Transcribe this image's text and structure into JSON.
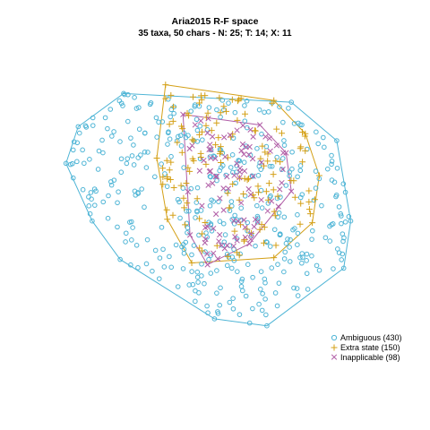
{
  "chart_data": {
    "type": "scatter",
    "title": "Aria2015 R-F space",
    "subtitle": "35 taxa, 50 chars - N: 25; T: 14; X: 11",
    "xlabel": "",
    "ylabel": "",
    "axes_visible": false,
    "grid": false,
    "legend_position": "bottom-right",
    "hull_vertices_note": "",
    "series": [
      {
        "name": "Ambiguous (430)",
        "count": 430,
        "marker": "circle",
        "color": "#4fb5d6",
        "hull": [
          [
            -0.86,
            0.48
          ],
          [
            -0.6,
            0.67
          ],
          [
            0.36,
            0.62
          ],
          [
            0.62,
            0.4
          ],
          [
            0.7,
            -0.06
          ],
          [
            0.66,
            -0.33
          ],
          [
            0.22,
            -0.66
          ],
          [
            -0.08,
            -0.62
          ],
          [
            -0.62,
            -0.28
          ],
          [
            -0.78,
            -0.06
          ],
          [
            -0.93,
            0.27
          ]
        ],
        "points_seed": 2015
      },
      {
        "name": "Extra state (150)",
        "count": 150,
        "marker": "plus",
        "color": "#d4a017",
        "hull": [
          [
            -0.36,
            0.72
          ],
          [
            0.26,
            0.63
          ],
          [
            0.44,
            0.44
          ],
          [
            0.52,
            0.2
          ],
          [
            0.48,
            -0.07
          ],
          [
            0.26,
            -0.27
          ],
          [
            -0.21,
            -0.3
          ],
          [
            -0.35,
            -0.05
          ],
          [
            -0.41,
            0.3
          ]
        ],
        "points_seed": 150
      },
      {
        "name": "Inapplicable (98)",
        "count": 98,
        "marker": "cross",
        "color": "#b05da6",
        "hull": [
          [
            -0.26,
            0.55
          ],
          [
            0.18,
            0.49
          ],
          [
            0.33,
            0.33
          ],
          [
            0.36,
            0.11
          ],
          [
            0.12,
            -0.19
          ],
          [
            -0.12,
            -0.31
          ],
          [
            -0.22,
            -0.14
          ]
        ],
        "points_seed": 98
      }
    ]
  },
  "legend": {
    "items": [
      {
        "label": "Ambiguous (430)",
        "color": "#4fb5d6",
        "marker": "circle"
      },
      {
        "label": "Extra state (150)",
        "color": "#d4a017",
        "marker": "plus"
      },
      {
        "label": "Inapplicable (98)",
        "color": "#b05da6",
        "marker": "cross"
      }
    ]
  }
}
